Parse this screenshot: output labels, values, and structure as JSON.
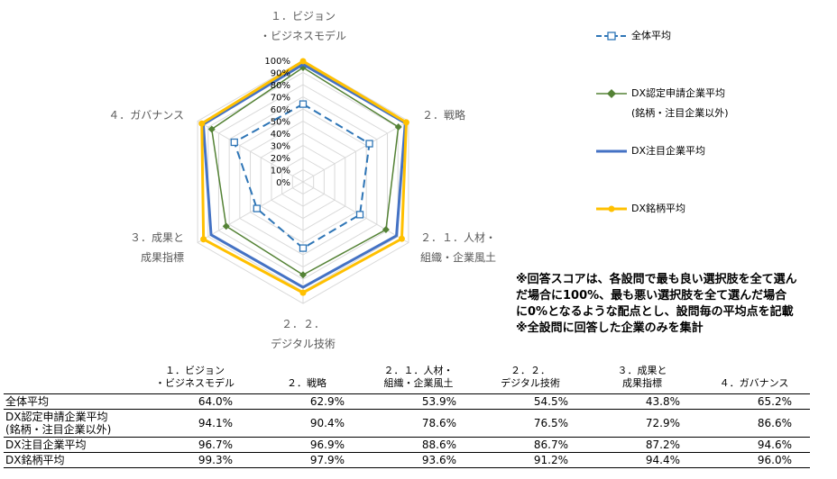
{
  "chart_data": {
    "type": "radar",
    "axes": [
      {
        "line1": "１．ビジョン",
        "line2": "・ビジネスモデル"
      },
      {
        "line1": "２．戦略",
        "line2": ""
      },
      {
        "line1": "２．１．人材・",
        "line2": "組織・企業風土"
      },
      {
        "line1": "２．２．",
        "line2": "デジタル技術"
      },
      {
        "line1": "３．成果と",
        "line2": "成果指標"
      },
      {
        "line1": "４．ガバナンス",
        "line2": ""
      }
    ],
    "ticks": [
      "0%",
      "10%",
      "20%",
      "30%",
      "40%",
      "50%",
      "60%",
      "70%",
      "80%",
      "90%",
      "100%"
    ],
    "range": [
      0,
      100
    ],
    "series": [
      {
        "name": "全体平均",
        "name2": "",
        "color": "#2E75B6",
        "marker": "square-open",
        "dash": true,
        "width": 2,
        "values": [
          64.0,
          62.9,
          53.9,
          54.5,
          43.8,
          65.2
        ]
      },
      {
        "name": "DX認定申請企業平均",
        "name2": "(銘柄・注目企業以外)",
        "color": "#548235",
        "marker": "diamond",
        "dash": false,
        "width": 1.5,
        "values": [
          94.1,
          90.4,
          78.6,
          76.5,
          72.9,
          86.6
        ]
      },
      {
        "name": "DX注目企業平均",
        "name2": "",
        "color": "#4472C4",
        "marker": "none",
        "dash": false,
        "width": 3,
        "values": [
          96.7,
          96.9,
          88.6,
          86.7,
          87.2,
          94.6
        ]
      },
      {
        "name": "DX銘柄平均",
        "name2": "",
        "color": "#FFC000",
        "marker": "circle",
        "dash": false,
        "width": 3,
        "values": [
          99.3,
          97.9,
          93.6,
          91.2,
          94.4,
          96.0
        ]
      }
    ]
  },
  "note": [
    "※回答スコアは、各設問で最も良い選択肢を全て選ん",
    "だ場合に100%、最も悪い選択肢を全て選んだ場合",
    "に0%となるような配点とし、設問毎の平均点を記載",
    "※全設問に回答した企業のみを集計"
  ],
  "table": {
    "headers": [
      {
        "line1": "１．ビジョン",
        "line2": "・ビジネスモデル"
      },
      {
        "line1": "２．戦略",
        "line2": ""
      },
      {
        "line1": "２．１．人材・",
        "line2": "組織・企業風土"
      },
      {
        "line1": "２．２．",
        "line2": "デジタル技術"
      },
      {
        "line1": "３．成果と",
        "line2": "成果指標"
      },
      {
        "line1": "４．ガバナンス",
        "line2": ""
      }
    ],
    "rows": [
      {
        "name": "全体平均",
        "name2": "",
        "cells": [
          "64.0%",
          "62.9%",
          "53.9%",
          "54.5%",
          "43.8%",
          "65.2%"
        ]
      },
      {
        "name": "DX認定申請企業平均",
        "name2": "(銘柄・注目企業以外)",
        "cells": [
          "94.1%",
          "90.4%",
          "78.6%",
          "76.5%",
          "72.9%",
          "86.6%"
        ]
      },
      {
        "name": "DX注目企業平均",
        "name2": "",
        "cells": [
          "96.7%",
          "96.9%",
          "88.6%",
          "86.7%",
          "87.2%",
          "94.6%"
        ]
      },
      {
        "name": "DX銘柄平均",
        "name2": "",
        "cells": [
          "99.3%",
          "97.9%",
          "93.6%",
          "91.2%",
          "94.4%",
          "96.0%"
        ]
      }
    ]
  }
}
